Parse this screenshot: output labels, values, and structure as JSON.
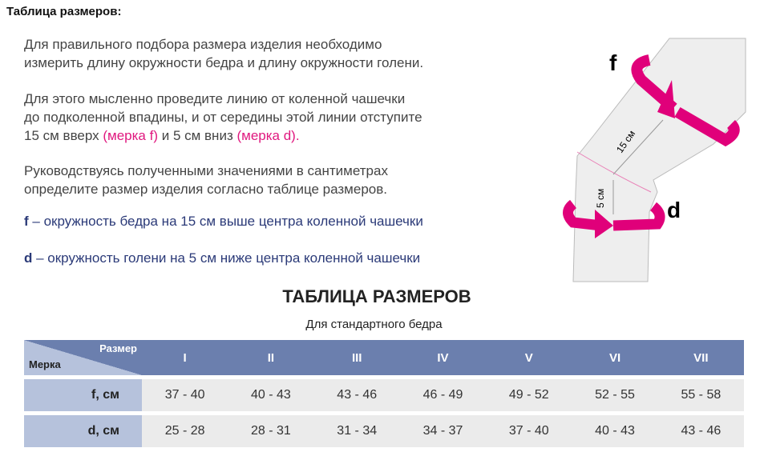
{
  "title": "Таблица размеров:",
  "intro": {
    "p1": [
      "Для правильного подбора размера изделия необходимо",
      "измерить длину окружности бедра и длину окружности голени."
    ],
    "p2a": "Для этого мысленно проведите линию от коленной чашечки",
    "p2b": "до подколенной впадины, и от середины этой линии отступите",
    "p2c_pre": "15 см вверх ",
    "p2c_f": "(мерка f)",
    "p2c_mid": " и 5 см вниз ",
    "p2c_d": "(мерка d).",
    "p3": [
      "Руководствуясь полученными значениями в сантиметрах",
      "определите размер изделия согласно таблице размеров."
    ],
    "def_f": {
      "letter": "f",
      "text": " – окружность бедра на 15 см выше центра коленной чашечки"
    },
    "def_d": {
      "letter": "d",
      "text": " – окружность голени на 5 см ниже центра коленной чашечки"
    }
  },
  "diagram": {
    "label_f": "f",
    "label_d": "d",
    "dist_15": "15 см",
    "dist_5": "5 см",
    "accent": "#e0007a"
  },
  "table": {
    "title": "ТАБЛИЦА РАЗМЕРОВ",
    "subtitle": "Для стандартного бедра",
    "corner_top": "Размер",
    "corner_bottom": "Мерка",
    "sizes": [
      "I",
      "II",
      "III",
      "IV",
      "V",
      "VI",
      "VII"
    ],
    "rows": [
      {
        "label": "f, см",
        "values": [
          "37 - 40",
          "40 - 43",
          "43 - 46",
          "46 - 49",
          "49 - 52",
          "52 - 55",
          "55 - 58"
        ]
      },
      {
        "label": "d, см",
        "values": [
          "25 - 28",
          "28 - 31",
          "31 - 34",
          "34 - 37",
          "37 - 40",
          "40 - 43",
          "43 - 46"
        ]
      }
    ],
    "header_color": "#6b7fae",
    "label_color": "#b6c2dc",
    "cell_color": "#ebebeb"
  }
}
